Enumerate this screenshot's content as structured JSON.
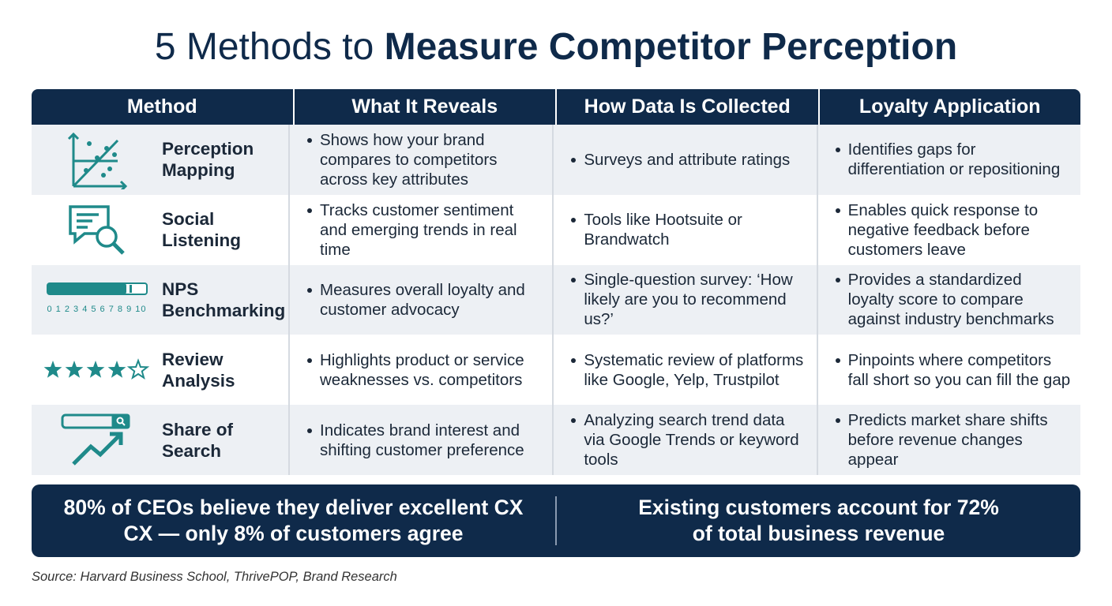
{
  "header": {
    "title_regular": "5 Methods to",
    "title_bold": "Measure Competitor Perception"
  },
  "table": {
    "columns": [
      "Method",
      "What It Reveals",
      "How Data Is Collected",
      "Loyalty Application"
    ],
    "rows": [
      {
        "method": "Perception Mapping",
        "reveals": "Shows how your brand compares to competitors across key attributes",
        "collected": "Surveys and attribute ratings",
        "application": "Identifies gaps for differentiation or repositioning"
      },
      {
        "method": "Social Listening",
        "reveals": "Tracks customer sentiment and emerging trends in real time",
        "collected": "Tools like Hootsuite or Brandwatch",
        "application": "Enables quick response to negative feedback before customers leave"
      },
      {
        "method": "NPS Benchmarking",
        "icon_label": "0 1 2 3 4 5 6 7 8 9 10",
        "reveals": "Measures overall loyalty and customer advocacy",
        "collected": "Single-question survey: ‘How likely are you to recommend us?’",
        "application": "Provides a standardized loyalty score to compare against industry benchmarks"
      },
      {
        "method": "Review Analysis",
        "reveals": "Highlights product or service weaknesses vs. competitors",
        "collected": "Systematic review of platforms like Google, Yelp, Trustpilot",
        "application": "Pinpoints where competitors fall short so you can fill the gap"
      },
      {
        "method": "Share of Search",
        "reveals": "Indicates brand interest and shifting customer preference",
        "collected": "Analyzing search trend data via Google Trends or keyword tools",
        "application": "Predicts market share shifts before revenue changes appear"
      }
    ]
  },
  "footer": {
    "stats": [
      {
        "lines": [
          "80% of CEOs believe they deliver excellent CX",
          "CX — only 8% of customers agree"
        ]
      },
      {
        "lines": [
          "Existing customers account for 72%",
          "of total business revenue"
        ]
      }
    ],
    "source": "Source: Harvard Business School, ThrivePOP, Brand Research"
  }
}
